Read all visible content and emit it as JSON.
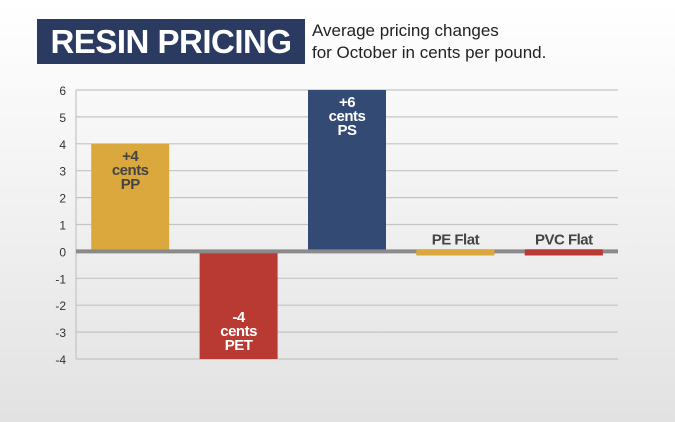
{
  "header": {
    "title": "RESIN PRICING",
    "subtitle_line1": "Average pricing changes",
    "subtitle_line2": "for October in cents per pound."
  },
  "chart_data": {
    "type": "bar",
    "categories": [
      "PP",
      "PET",
      "PS",
      "PE",
      "PVC"
    ],
    "values": [
      4,
      -4,
      6,
      0,
      0
    ],
    "data_labels": [
      [
        "+4",
        "cents",
        "PP"
      ],
      [
        "-4",
        "cents",
        "PET"
      ],
      [
        "+6",
        "cents",
        "PS"
      ],
      [
        "PE Flat"
      ],
      [
        "PVC Flat"
      ]
    ],
    "colors": [
      "#dba83e",
      "#b83a32",
      "#334a75",
      "#dba83e",
      "#b83a32"
    ],
    "label_colors": [
      "#444444",
      "#ffffff",
      "#ffffff",
      "#444444",
      "#444444"
    ],
    "ylim": [
      -4,
      6
    ],
    "yticks": [
      6,
      5,
      4,
      3,
      2,
      1,
      0,
      -1,
      -2,
      -3,
      -4
    ],
    "grid": true,
    "title": "",
    "xlabel": "",
    "ylabel": ""
  }
}
